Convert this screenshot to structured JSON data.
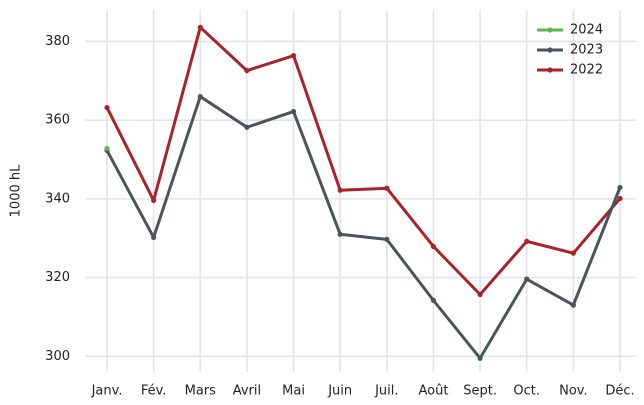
{
  "chart_data": {
    "type": "line",
    "ylabel": "1000 hL",
    "categories": [
      "Janv.",
      "Fév.",
      "Mars",
      "Avril",
      "Mai",
      "Juin",
      "Juil.",
      "Août",
      "Sept.",
      "Oct.",
      "Nov.",
      "Déc."
    ],
    "series": [
      {
        "name": "2024",
        "color": "#5ab552",
        "values": [
          352.8,
          null,
          null,
          null,
          null,
          null,
          null,
          null,
          null,
          null,
          null,
          null
        ]
      },
      {
        "name": "2023",
        "color": "#4a555a",
        "values": [
          352.3,
          330.2,
          366.0,
          358.2,
          362.2,
          331.0,
          329.7,
          314.2,
          299.5,
          319.6,
          313.0,
          342.9
        ]
      },
      {
        "name": "2022",
        "color": "#a8232b",
        "values": [
          363.2,
          339.6,
          383.6,
          372.6,
          376.4,
          342.2,
          342.7,
          327.9,
          315.7,
          329.2,
          326.2,
          340.1
        ]
      }
    ],
    "ylim": [
      296,
      388
    ],
    "yticks": [
      300,
      320,
      340,
      360,
      380
    ],
    "grid": true,
    "legend": "top-right"
  }
}
